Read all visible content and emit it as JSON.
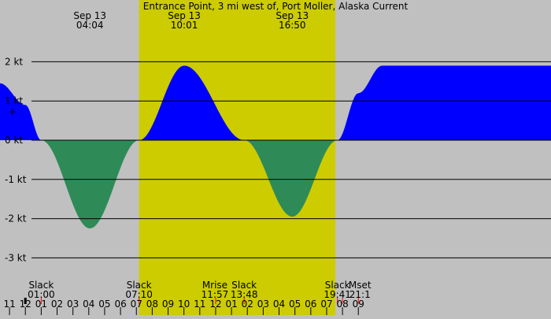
{
  "title": "Entrance Point, 3 mi west of, Port Moller, Alaska Current",
  "colors": {
    "night": "#c0c0c0",
    "day": "#cccc00",
    "flood": "#0000ff",
    "ebb": "#2e8b57",
    "grid": "#000000",
    "tick_red": "#ff0000"
  },
  "chart_data": {
    "type": "area",
    "title": "Entrance Point, 3 mi west of, Port Moller, Alaska Current",
    "xlabel": "",
    "ylabel": "",
    "units": "kt",
    "x_unit": "hour of day (Sep 12 23:00 → Sep 14 09:00)",
    "xlim": [
      -1.6,
      33.15
    ],
    "ylim": [
      -3.5,
      3.5
    ],
    "grid": true,
    "y_ticks": [
      {
        "value": 2,
        "label": "2 kt"
      },
      {
        "value": 1,
        "label": "1 kt"
      },
      {
        "value": 0,
        "label": "0 kt"
      },
      {
        "value": -1,
        "label": "-1 kt"
      },
      {
        "value": -2,
        "label": "-2 kt"
      },
      {
        "value": -3,
        "label": "-3 kt"
      }
    ],
    "x_ticks": [
      {
        "x": -1,
        "label": "11"
      },
      {
        "x": 0,
        "label": "12"
      },
      {
        "x": 1,
        "label": "01"
      },
      {
        "x": 2,
        "label": "02"
      },
      {
        "x": 3,
        "label": "03"
      },
      {
        "x": 4,
        "label": "04"
      },
      {
        "x": 5,
        "label": "05"
      },
      {
        "x": 6,
        "label": "06"
      },
      {
        "x": 7,
        "label": "07"
      },
      {
        "x": 8,
        "label": "08"
      },
      {
        "x": 9,
        "label": "09"
      },
      {
        "x": 10,
        "label": "10"
      },
      {
        "x": 11,
        "label": "11"
      },
      {
        "x": 12,
        "label": "12"
      },
      {
        "x": 13,
        "label": "01"
      },
      {
        "x": 14,
        "label": "02"
      },
      {
        "x": 15,
        "label": "03"
      },
      {
        "x": 16,
        "label": "04"
      },
      {
        "x": 17,
        "label": "05"
      },
      {
        "x": 18,
        "label": "06"
      },
      {
        "x": 19,
        "label": "07"
      },
      {
        "x": 20,
        "label": "08"
      },
      {
        "x": 21,
        "label": "09"
      }
    ],
    "series": [
      {
        "x": [
          -1.6,
          0,
          1,
          4.07,
          7.17,
          10.02,
          13.8,
          16.83,
          19.68,
          21.0,
          22.5
        ],
        "values": [
          1.45,
          0.9,
          0,
          -2.25,
          0,
          1.9,
          0,
          -1.95,
          0,
          1.2,
          1.9
        ]
      }
    ],
    "daylight": {
      "start": 7.17,
      "end": 19.55
    },
    "markers": [
      {
        "x": 0,
        "color": "black"
      },
      {
        "x": 1,
        "color": "red"
      },
      {
        "x": 7.17,
        "color": "red"
      },
      {
        "x": 12.0,
        "color": "red"
      },
      {
        "x": 13.8,
        "color": "red"
      },
      {
        "x": 19.68,
        "color": "red"
      },
      {
        "x": 20.0,
        "color": "red"
      },
      {
        "x": 21.0,
        "color": "red"
      }
    ],
    "peak_labels": [
      {
        "x": 4.07,
        "date": "Sep 13",
        "time": "04:04"
      },
      {
        "x": 10.02,
        "date": "Sep 13",
        "time": "10:01"
      },
      {
        "x": 16.83,
        "date": "Sep 13",
        "time": "16:50"
      }
    ],
    "event_labels": [
      {
        "x": 1.0,
        "name": "Slack",
        "time": "01:00"
      },
      {
        "x": 7.17,
        "name": "Slack",
        "time": "07:10"
      },
      {
        "x": 11.95,
        "name": "Mrise",
        "time": "11:57"
      },
      {
        "x": 13.8,
        "name": "Slack",
        "time": "13:48"
      },
      {
        "x": 19.68,
        "name": "Slack",
        "time": "19:41"
      },
      {
        "x": 21.1,
        "name": "Mset",
        "time": "21:1"
      }
    ],
    "current_marker": {
      "x": -0.82,
      "y": 0.72,
      "symbol": "+"
    }
  }
}
